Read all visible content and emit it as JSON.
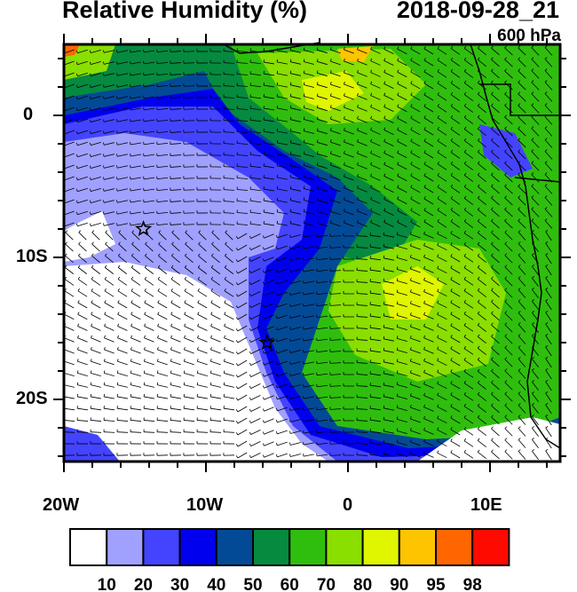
{
  "title": "Relative Humidity (%)",
  "valid_time": "2018-09-28_21",
  "level": "600 hPa",
  "map": {
    "lon_range": [
      -20,
      15
    ],
    "lat_range": [
      -24.4,
      5
    ],
    "x_labels": [
      "20W",
      "10W",
      "0",
      "10E"
    ],
    "y_labels": [
      "0",
      "10S",
      "20S"
    ],
    "markers": [
      {
        "type": "star",
        "lon": -14.4,
        "lat": -8.0
      },
      {
        "type": "star",
        "lon": -5.7,
        "lat": -16.0
      }
    ],
    "overlay": "wind barbs"
  },
  "colorbar": {
    "labels": [
      "10",
      "20",
      "30",
      "40",
      "50",
      "60",
      "70",
      "80",
      "90",
      "95",
      "98"
    ],
    "colors": [
      "#ffffff",
      "#a0a0ff",
      "#4444ff",
      "#0000ee",
      "#034a96",
      "#058a40",
      "#2fbe0e",
      "#8ade00",
      "#e0f500",
      "#ffc400",
      "#ff6600",
      "#ff0a00"
    ]
  }
}
